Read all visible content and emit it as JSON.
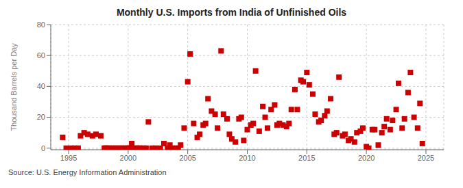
{
  "chart_data": {
    "type": "scatter",
    "title": "Monthly U.S. Imports from India of Unfinished Oils",
    "y_label": "Thousand Barrels per Day",
    "annotations": [
      "Source: U.S. Energy Information Administration"
    ],
    "color": "#cc0000",
    "marker": "square",
    "grid": true,
    "xlim": [
      1993.5,
      2026.5
    ],
    "ylim": [
      -1,
      80
    ],
    "xticks": [
      1995,
      2000,
      2005,
      2010,
      2015,
      2020,
      2025
    ],
    "yticks": [
      0,
      20,
      40,
      60,
      80
    ],
    "x": [
      1994.5,
      1994.8,
      1995.2,
      1995.5,
      1995.8,
      1996.0,
      1996.3,
      1996.6,
      1997.0,
      1997.3,
      1997.7,
      1998.0,
      1998.1,
      1998.2,
      1998.4,
      1998.6,
      1998.8,
      1999.0,
      1999.2,
      1999.4,
      1999.6,
      1999.8,
      2000.0,
      2000.1,
      2000.2,
      2000.3,
      2000.5,
      2000.7,
      2000.9,
      2001.0,
      2001.3,
      2001.5,
      2001.7,
      2002.0,
      2002.3,
      2002.7,
      2003.0,
      2003.3,
      2003.5,
      2003.7,
      2004.0,
      2004.2,
      2004.4,
      2004.7,
      2005.0,
      2005.2,
      2005.5,
      2005.8,
      2006.0,
      2006.3,
      2006.5,
      2006.7,
      2007.0,
      2007.3,
      2007.5,
      2007.8,
      2008.0,
      2008.3,
      2008.5,
      2008.7,
      2009.0,
      2009.3,
      2009.5,
      2009.7,
      2010.0,
      2010.3,
      2010.5,
      2010.7,
      2011.0,
      2011.3,
      2011.5,
      2011.7,
      2012.0,
      2012.3,
      2012.5,
      2012.7,
      2013.0,
      2013.3,
      2013.5,
      2013.7,
      2014.0,
      2014.2,
      2014.5,
      2014.7,
      2015.0,
      2015.2,
      2015.5,
      2015.7,
      2016.0,
      2016.2,
      2016.5,
      2016.7,
      2017.0,
      2017.3,
      2017.5,
      2017.7,
      2018.0,
      2018.2,
      2018.5,
      2018.7,
      2019.0,
      2019.2,
      2019.5,
      2019.7,
      2020.0,
      2020.2,
      2020.5,
      2020.7,
      2021.0,
      2021.3,
      2021.5,
      2021.7,
      2022.0,
      2022.2,
      2022.5,
      2022.7,
      2023.0,
      2023.2,
      2023.5,
      2023.7,
      2024.0,
      2024.3,
      2024.5,
      2024.7
    ],
    "values": [
      7,
      0,
      0,
      0,
      0,
      8,
      10,
      9,
      8,
      9,
      8,
      0,
      0,
      0,
      0,
      0,
      0,
      0,
      0,
      0,
      0,
      0,
      0,
      0,
      0,
      3,
      0,
      0,
      0,
      0,
      0,
      0,
      17,
      0,
      0,
      0,
      3,
      0,
      2,
      0,
      0,
      0,
      2,
      13,
      43,
      61,
      16,
      7,
      9,
      15,
      16,
      32,
      24,
      22,
      13,
      63,
      22,
      19,
      9,
      6,
      4,
      19,
      20,
      5,
      12,
      15,
      16,
      50,
      11,
      27,
      20,
      13,
      25,
      28,
      15,
      16,
      15,
      14,
      16,
      25,
      38,
      25,
      44,
      43,
      49,
      41,
      35,
      22,
      17,
      18,
      21,
      24,
      32,
      9,
      10,
      46,
      8,
      9,
      5,
      6,
      4,
      10,
      11,
      13,
      1,
      0,
      12,
      12,
      2,
      10,
      14,
      19,
      12,
      18,
      25,
      42,
      13,
      19,
      36,
      49,
      20,
      13,
      29,
      3
    ]
  }
}
